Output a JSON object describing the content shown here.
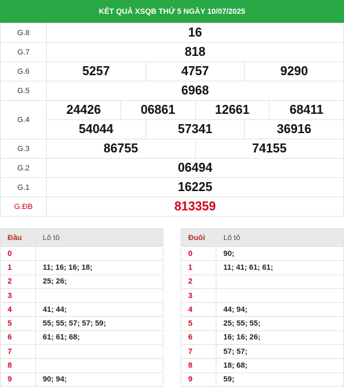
{
  "header": {
    "title": "KẾT QUẢ XSQB THỨ 5 NGÀY 10/07/2025"
  },
  "results": {
    "g8": {
      "label": "G.8",
      "values": [
        "16"
      ]
    },
    "g7": {
      "label": "G.7",
      "values": [
        "818"
      ]
    },
    "g6": {
      "label": "G.6",
      "values": [
        "5257",
        "4757",
        "9290"
      ]
    },
    "g5": {
      "label": "G.5",
      "values": [
        "6968"
      ]
    },
    "g4": {
      "label": "G.4",
      "row1": [
        "24426",
        "06861",
        "12661",
        "68411"
      ],
      "row2": [
        "54044",
        "57341",
        "36916"
      ]
    },
    "g3": {
      "label": "G.3",
      "values": [
        "86755",
        "74155"
      ]
    },
    "g2": {
      "label": "G.2",
      "values": [
        "06494"
      ]
    },
    "g1": {
      "label": "G.1",
      "values": [
        "16225"
      ]
    },
    "gdb": {
      "label": "G.ĐB",
      "values": [
        "813359"
      ]
    }
  },
  "loto_head": {
    "col1": "Đầu",
    "col2": "Lô tô",
    "rows": [
      {
        "k": "0",
        "v": ""
      },
      {
        "k": "1",
        "v": "11; 16; 16; 18;"
      },
      {
        "k": "2",
        "v": "25; 26;"
      },
      {
        "k": "3",
        "v": ""
      },
      {
        "k": "4",
        "v": "41; 44;"
      },
      {
        "k": "5",
        "v": "55; 55; 57; 57; 59;"
      },
      {
        "k": "6",
        "v": "61; 61; 68;"
      },
      {
        "k": "7",
        "v": ""
      },
      {
        "k": "8",
        "v": ""
      },
      {
        "k": "9",
        "v": "90; 94;"
      }
    ]
  },
  "loto_tail": {
    "col1": "Đuôi",
    "col2": "Lô tô",
    "rows": [
      {
        "k": "0",
        "v": "90;"
      },
      {
        "k": "1",
        "v": "11; 41; 61; 61;"
      },
      {
        "k": "2",
        "v": ""
      },
      {
        "k": "3",
        "v": ""
      },
      {
        "k": "4",
        "v": "44; 94;"
      },
      {
        "k": "5",
        "v": "25; 55; 55;"
      },
      {
        "k": "6",
        "v": "16; 16; 26;"
      },
      {
        "k": "7",
        "v": "57; 57;"
      },
      {
        "k": "8",
        "v": "18; 68;"
      },
      {
        "k": "9",
        "v": "59;"
      }
    ]
  }
}
